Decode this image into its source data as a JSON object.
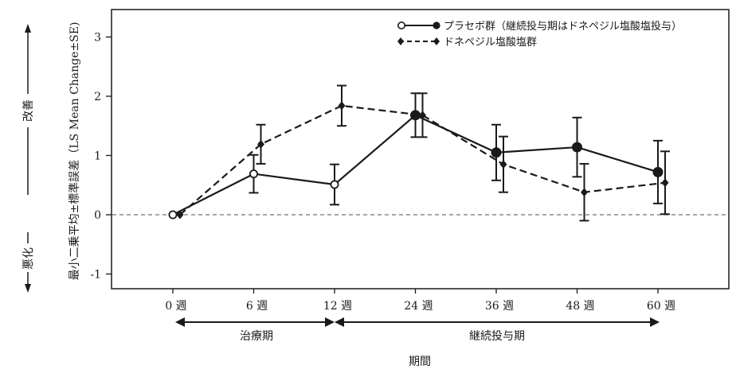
{
  "chart_data": {
    "type": "line",
    "xlabel": "期間",
    "ylabel": "最小二乗平均±標準誤差（LS Mean Change±SE)",
    "categories": [
      "0 週",
      "6 週",
      "12 週",
      "24 週",
      "36 週",
      "48 週",
      "60 週"
    ],
    "ylim": [
      -1.3,
      3.4
    ],
    "yticks": [
      "-1",
      "0",
      "1",
      "2",
      "3"
    ],
    "ytick_values": [
      -1,
      0,
      1,
      2,
      3
    ],
    "reference_line": 0,
    "legend_position": "top-right",
    "series": [
      {
        "name": "プラセボ群（継続投与期はドネペジル塩酸塩投与）",
        "style": "solid",
        "marker_open": [
          true,
          true,
          true,
          false,
          false,
          false,
          false
        ],
        "values": [
          0,
          0.69,
          0.51,
          1.68,
          1.05,
          1.14,
          0.72
        ],
        "errors": [
          0,
          0.32,
          0.34,
          0.37,
          0.47,
          0.5,
          0.53
        ]
      },
      {
        "name": "ドネペジル塩酸塩群",
        "style": "dashed",
        "marker_open": [
          false,
          false,
          false,
          false,
          false,
          false,
          false
        ],
        "values": [
          0,
          1.19,
          1.84,
          1.68,
          0.85,
          0.38,
          0.54
        ],
        "errors": [
          0,
          0.33,
          0.34,
          0.37,
          0.47,
          0.48,
          0.53
        ]
      }
    ],
    "direction_up": "改善",
    "direction_down": "悪化",
    "periods": [
      {
        "label": "治療期",
        "from": 0,
        "to": 2
      },
      {
        "label": "継続投与期",
        "from": 2,
        "to": 6
      }
    ]
  },
  "colors": {
    "line": "#1a1a1a",
    "reference": "#8a8a8a",
    "background": "#ffffff"
  }
}
